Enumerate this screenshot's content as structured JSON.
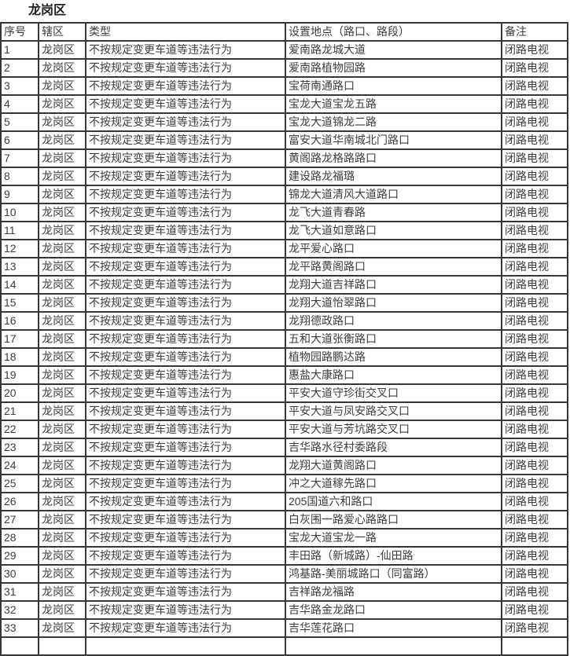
{
  "page": {
    "title": "龙岗区"
  },
  "table": {
    "headers": [
      "序号",
      "辖区",
      "类型",
      "设置地点（路口、路段）",
      "备注"
    ],
    "rows": [
      [
        "1",
        "龙岗区",
        "不按规定变更车道等违法行为",
        "爱南路龙城大道",
        "闭路电视"
      ],
      [
        "2",
        "龙岗区",
        "不按规定变更车道等违法行为",
        "爱南路植物园路",
        "闭路电视"
      ],
      [
        "3",
        "龙岗区",
        "不按规定变更车道等违法行为",
        "宝荷南通路口",
        "闭路电视"
      ],
      [
        "4",
        "龙岗区",
        "不按规定变更车道等违法行为",
        "宝龙大道宝龙五路",
        "闭路电视"
      ],
      [
        "5",
        "龙岗区",
        "不按规定变更车道等违法行为",
        "宝龙大道锦龙二路",
        "闭路电视"
      ],
      [
        "6",
        "龙岗区",
        "不按规定变更车道等违法行为",
        "富安大道华南城北门路口",
        "闭路电视"
      ],
      [
        "7",
        "龙岗区",
        "不按规定变更车道等违法行为",
        "黄阁路龙格路路口",
        "闭路电视"
      ],
      [
        "8",
        "龙岗区",
        "不按规定变更车道等违法行为",
        "建设路龙福璐",
        "闭路电视"
      ],
      [
        "9",
        "龙岗区",
        "不按规定变更车道等违法行为",
        "锦龙大道清风大道路口",
        "闭路电视"
      ],
      [
        "10",
        "龙岗区",
        "不按规定变更车道等违法行为",
        "龙飞大道青春路",
        "闭路电视"
      ],
      [
        "11",
        "龙岗区",
        "不按规定变更车道等违法行为",
        "龙飞大道如意路口",
        "闭路电视"
      ],
      [
        "12",
        "龙岗区",
        "不按规定变更车道等违法行为",
        "龙平爱心路口",
        "闭路电视"
      ],
      [
        "13",
        "龙岗区",
        "不按规定变更车道等违法行为",
        "龙平路黄阁路口",
        "闭路电视"
      ],
      [
        "14",
        "龙岗区",
        "不按规定变更车道等违法行为",
        "龙翔大道吉祥路口",
        "闭路电视"
      ],
      [
        "15",
        "龙岗区",
        "不按规定变更车道等违法行为",
        "龙翔大道怡翠路口",
        "闭路电视"
      ],
      [
        "16",
        "龙岗区",
        "不按规定变更车道等违法行为",
        "龙翔德政路口",
        "闭路电视"
      ],
      [
        "17",
        "龙岗区",
        "不按规定变更车道等违法行为",
        "五和大道张衡路口",
        "闭路电视"
      ],
      [
        "18",
        "龙岗区",
        "不按规定变更车道等违法行为",
        "植物园路鹏达路",
        "闭路电视"
      ],
      [
        "19",
        "龙岗区",
        "不按规定变更车道等违法行为",
        "惠盐大康路口",
        "闭路电视"
      ],
      [
        "20",
        "龙岗区",
        "不按规定变更车道等违法行为",
        "平安大道守珍街交叉口",
        "闭路电视"
      ],
      [
        "21",
        "龙岗区",
        "不按规定变更车道等违法行为",
        "平安大道与凤安路交叉口",
        "闭路电视"
      ],
      [
        "22",
        "龙岗区",
        "不按规定变更车道等违法行为",
        "平安大道与芳坑路交叉口",
        "闭路电视"
      ],
      [
        "23",
        "龙岗区",
        "不按规定变更车道等违法行为",
        "吉华路水径村委路段",
        "闭路电视"
      ],
      [
        "24",
        "龙岗区",
        "不按规定变更车道等违法行为",
        "龙翔大道黄阁路口",
        "闭路电视"
      ],
      [
        "25",
        "龙岗区",
        "不按规定变更车道等违法行为",
        "冲之大道稼先路口",
        "闭路电视"
      ],
      [
        "26",
        "龙岗区",
        "不按规定变更车道等违法行为",
        "205国道六和路口",
        "闭路电视"
      ],
      [
        "27",
        "龙岗区",
        "不按规定变更车道等违法行为",
        "白灰围一路爱心路路口",
        "闭路电视"
      ],
      [
        "28",
        "龙岗区",
        "不按规定变更车道等违法行为",
        "宝龙大道宝龙一路",
        "闭路电视"
      ],
      [
        "29",
        "龙岗区",
        "不按规定变更车道等违法行为",
        "丰田路（新城路）-仙田路",
        "闭路电视"
      ],
      [
        "30",
        "龙岗区",
        "不按规定变更车道等违法行为",
        "鸿基路-美丽城路口（同富路）",
        "闭路电视"
      ],
      [
        "31",
        "龙岗区",
        "不按规定变更车道等违法行为",
        "吉祥路龙福路",
        "闭路电视"
      ],
      [
        "32",
        "龙岗区",
        "不按规定变更车道等违法行为",
        "吉华路金龙路口",
        "闭路电视"
      ],
      [
        "33",
        "龙岗区",
        "不按规定变更车道等违法行为",
        "吉华莲花路口",
        "闭路电视"
      ]
    ],
    "truncated_next_row": true
  }
}
